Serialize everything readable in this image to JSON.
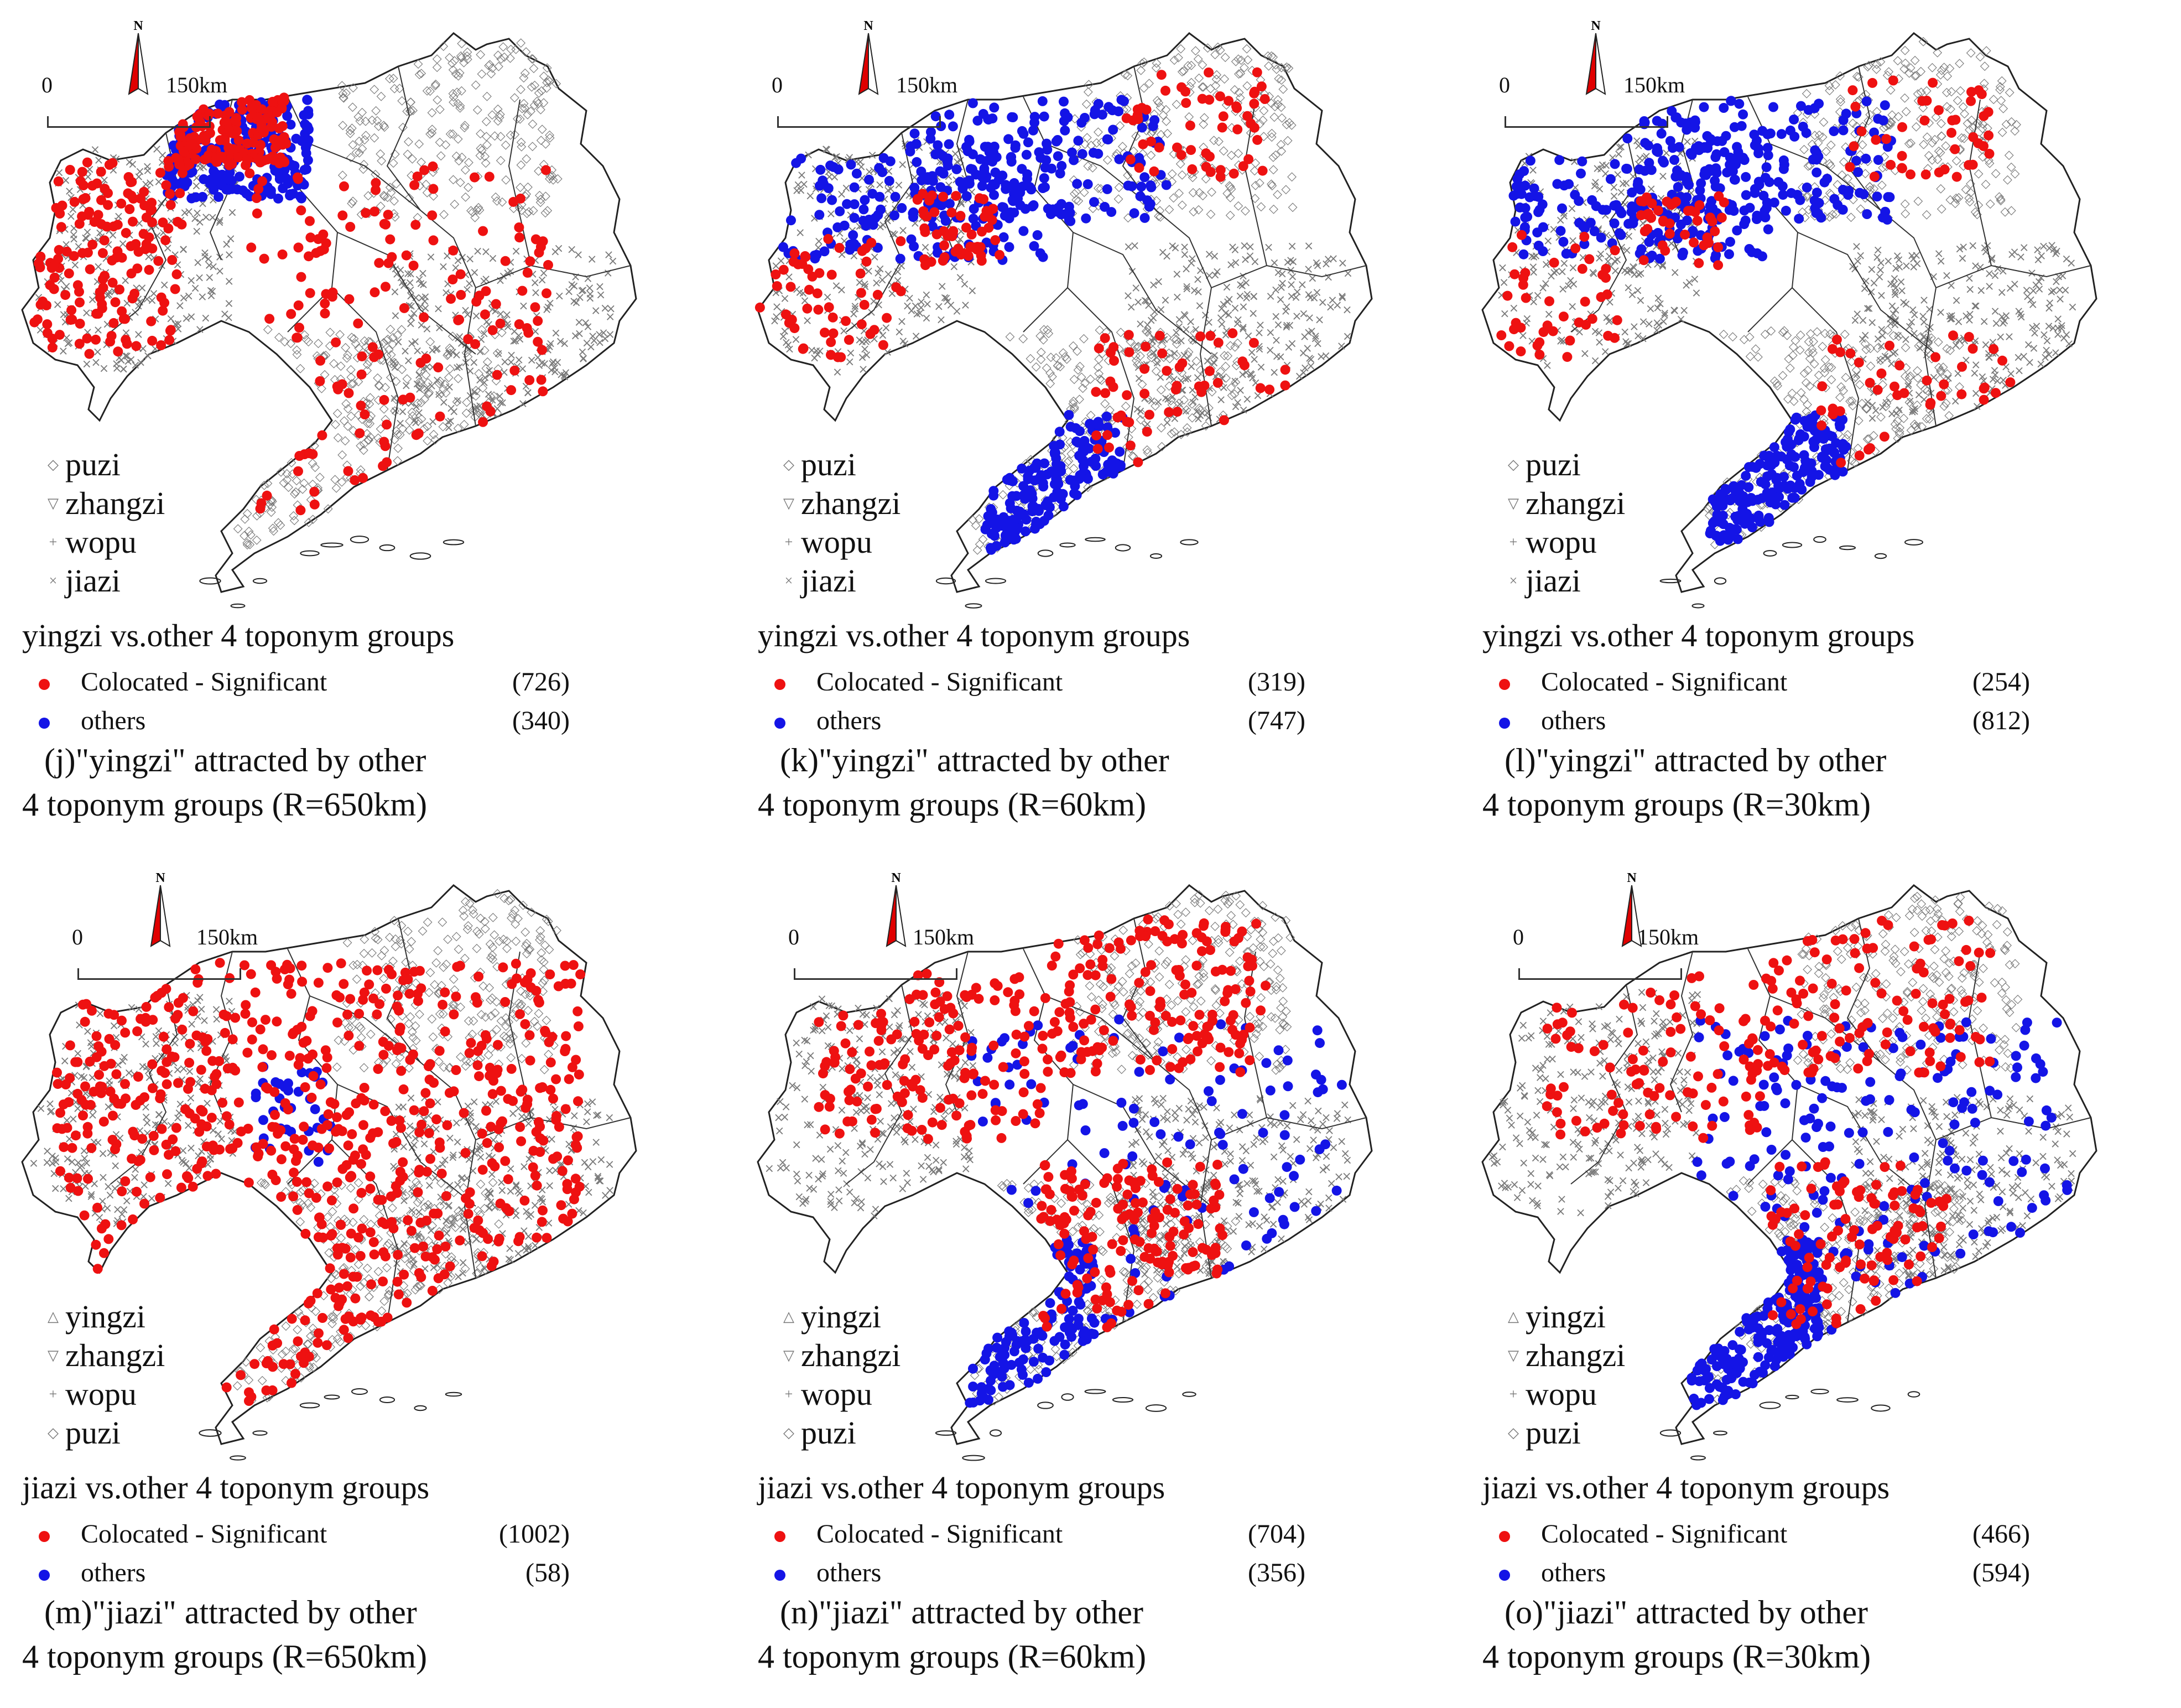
{
  "colors": {
    "significant": "#ee1111",
    "others": "#1414e6",
    "basemap": "#7a7a7a",
    "outline": "#222222"
  },
  "scale": {
    "zero": "0",
    "distance": "150km"
  },
  "north_label": "N",
  "panels": [
    {
      "symbols": [
        {
          "icon": "diamond-symbol",
          "glyph": "◇",
          "label": "puzi"
        },
        {
          "icon": "triangle-down-symbol",
          "glyph": "▽",
          "label": "zhangzi"
        },
        {
          "icon": "plus-symbol",
          "glyph": "+",
          "label": "wopu"
        },
        {
          "icon": "cross-symbol",
          "glyph": "×",
          "label": "jiazi"
        }
      ],
      "heading": "yingzi vs.other 4 toponym groups",
      "legend": [
        {
          "label": "Colocated - Significant",
          "count": "(726)"
        },
        {
          "label": "others",
          "count": "(340)"
        }
      ],
      "caption_1": "(j)\"yingzi\" attracted by other",
      "caption_2": "4 toponym groups (R=650km)",
      "significant_fraction": 0.68,
      "pattern": "west"
    },
    {
      "symbols": [
        {
          "icon": "diamond-symbol",
          "glyph": "◇",
          "label": "puzi"
        },
        {
          "icon": "triangle-down-symbol",
          "glyph": "▽",
          "label": "zhangzi"
        },
        {
          "icon": "plus-symbol",
          "glyph": "+",
          "label": "wopu"
        },
        {
          "icon": "cross-symbol",
          "glyph": "×",
          "label": "jiazi"
        }
      ],
      "heading": "yingzi vs.other 4 toponym groups",
      "legend": [
        {
          "label": "Colocated - Significant",
          "count": "(319)"
        },
        {
          "label": "others",
          "count": "(747)"
        }
      ],
      "caption_1": "(k)\"yingzi\" attracted by other",
      "caption_2": "4 toponym groups (R=60km)",
      "significant_fraction": 0.3,
      "pattern": "southwest"
    },
    {
      "symbols": [
        {
          "icon": "diamond-symbol",
          "glyph": "◇",
          "label": "puzi"
        },
        {
          "icon": "triangle-down-symbol",
          "glyph": "▽",
          "label": "zhangzi"
        },
        {
          "icon": "plus-symbol",
          "glyph": "+",
          "label": "wopu"
        },
        {
          "icon": "cross-symbol",
          "glyph": "×",
          "label": "jiazi"
        }
      ],
      "heading": "yingzi vs.other 4 toponym groups",
      "legend": [
        {
          "label": "Colocated - Significant",
          "count": "(254)"
        },
        {
          "label": "others",
          "count": "(812)"
        }
      ],
      "caption_1": "(l)\"yingzi\" attracted by other",
      "caption_2": "4 toponym groups (R=30km)",
      "significant_fraction": 0.24,
      "pattern": "southwest"
    },
    {
      "symbols": [
        {
          "icon": "triangle-up-symbol",
          "glyph": "△",
          "label": "yingzi"
        },
        {
          "icon": "triangle-down-symbol",
          "glyph": "▽",
          "label": "zhangzi"
        },
        {
          "icon": "plus-symbol",
          "glyph": "+",
          "label": "wopu"
        },
        {
          "icon": "diamond-symbol",
          "glyph": "◇",
          "label": "puzi"
        }
      ],
      "heading": "jiazi vs.other 4 toponym groups",
      "legend": [
        {
          "label": "Colocated - Significant",
          "count": "(1002)"
        },
        {
          "label": "others",
          "count": "(58)"
        }
      ],
      "caption_1": "(m)\"jiazi\" attracted by other",
      "caption_2": "4 toponym groups (R=650km)",
      "significant_fraction": 0.95,
      "pattern": "center"
    },
    {
      "symbols": [
        {
          "icon": "triangle-up-symbol",
          "glyph": "△",
          "label": "yingzi"
        },
        {
          "icon": "triangle-down-symbol",
          "glyph": "▽",
          "label": "zhangzi"
        },
        {
          "icon": "plus-symbol",
          "glyph": "+",
          "label": "wopu"
        },
        {
          "icon": "diamond-symbol",
          "glyph": "◇",
          "label": "puzi"
        }
      ],
      "heading": "jiazi vs.other 4 toponym groups",
      "legend": [
        {
          "label": "Colocated - Significant",
          "count": "(704)"
        },
        {
          "label": "others",
          "count": "(356)"
        }
      ],
      "caption_1": "(n)\"jiazi\" attracted by other",
      "caption_2": "4 toponym groups (R=60km)",
      "significant_fraction": 0.66,
      "pattern": "north"
    },
    {
      "symbols": [
        {
          "icon": "triangle-up-symbol",
          "glyph": "△",
          "label": "yingzi"
        },
        {
          "icon": "triangle-down-symbol",
          "glyph": "▽",
          "label": "zhangzi"
        },
        {
          "icon": "plus-symbol",
          "glyph": "+",
          "label": "wopu"
        },
        {
          "icon": "diamond-symbol",
          "glyph": "◇",
          "label": "puzi"
        }
      ],
      "heading": "jiazi vs.other 4 toponym groups",
      "legend": [
        {
          "label": "Colocated - Significant",
          "count": "(466)"
        },
        {
          "label": "others",
          "count": "(594)"
        }
      ],
      "caption_1": "(o)\"jiazi\" attracted by other",
      "caption_2": "4 toponym groups (R=30km)",
      "significant_fraction": 0.44,
      "pattern": "north"
    }
  ]
}
